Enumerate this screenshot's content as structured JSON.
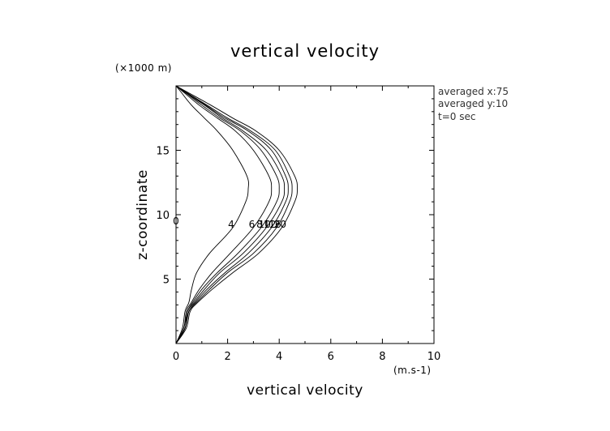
{
  "chart_data": {
    "type": "line",
    "title": "vertical velocity",
    "xlabel": "vertical velocity",
    "ylabel": "z-coordinate",
    "x_unit": "(m.s-1)",
    "y_unit": "(×1000 m)",
    "xlim": [
      0,
      10
    ],
    "ylim": [
      0,
      20
    ],
    "xticks": [
      "0",
      "2",
      "4",
      "6",
      "8",
      "10"
    ],
    "yticks": [
      "5",
      "10",
      "15"
    ],
    "grid": false,
    "info_lines": [
      "averaged  x:75",
      "averaged  y:10",
      "t=0 sec"
    ],
    "z_levels": [
      0,
      1.2,
      2.5,
      3.2,
      4.2,
      5.5,
      7,
      9,
      11,
      12,
      13,
      15,
      16.5,
      17.5,
      18.5,
      19.5,
      20
    ],
    "series": [
      {
        "label": "0",
        "values": [
          0,
          0,
          0,
          0,
          0,
          0,
          0,
          0,
          0,
          0,
          0,
          0,
          0,
          0,
          0,
          0,
          0
        ]
      },
      {
        "label": "4",
        "values": [
          0,
          0.25,
          0.35,
          0.5,
          0.6,
          0.8,
          1.3,
          2.2,
          2.7,
          2.8,
          2.75,
          2.2,
          1.6,
          1.1,
          0.6,
          0.2,
          0
        ]
      },
      {
        "label": "6",
        "values": [
          0,
          0.3,
          0.4,
          0.6,
          0.9,
          1.4,
          2.1,
          3.0,
          3.6,
          3.7,
          3.6,
          3.0,
          2.3,
          1.6,
          0.9,
          0.3,
          0
        ]
      },
      {
        "label": "8",
        "values": [
          0,
          0.3,
          0.45,
          0.65,
          1.0,
          1.6,
          2.4,
          3.3,
          3.9,
          4.0,
          3.9,
          3.3,
          2.5,
          1.7,
          1.0,
          0.35,
          0
        ]
      },
      {
        "label": "10",
        "values": [
          0,
          0.35,
          0.45,
          0.7,
          1.1,
          1.7,
          2.6,
          3.5,
          4.1,
          4.2,
          4.1,
          3.5,
          2.6,
          1.8,
          1.1,
          0.35,
          0
        ]
      },
      {
        "label": "12",
        "values": [
          0,
          0.35,
          0.5,
          0.75,
          1.2,
          1.9,
          2.8,
          3.7,
          4.25,
          4.35,
          4.25,
          3.7,
          2.8,
          1.9,
          1.15,
          0.4,
          0
        ]
      },
      {
        "label": "16",
        "values": [
          0,
          0.35,
          0.5,
          0.8,
          1.3,
          2.0,
          3.0,
          3.9,
          4.4,
          4.5,
          4.4,
          3.85,
          2.9,
          2.0,
          1.2,
          0.4,
          0
        ]
      },
      {
        "label": "20",
        "values": [
          0,
          0.4,
          0.55,
          0.85,
          1.4,
          2.2,
          3.2,
          4.1,
          4.6,
          4.7,
          4.6,
          4.0,
          3.1,
          2.2,
          1.35,
          0.45,
          0
        ]
      }
    ]
  }
}
